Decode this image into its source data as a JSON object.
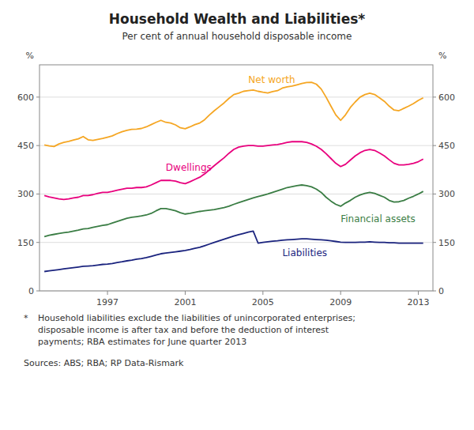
{
  "chart_data": {
    "type": "line",
    "title": "Household Wealth and Liabilities*",
    "subtitle": "Per cent of annual household disposable income",
    "y_label": "%",
    "y2_label": "%",
    "footnote_bullet": "*",
    "footnote": "Household liabilities exclude the liabilities of unincorporated enterprises;\ndisposable income is after tax and before the deduction of interest\npayments; RBA estimates for June quarter 2013",
    "sources": "Sources: ABS; RBA; RP Data-Rismark",
    "grid": true,
    "xlim": [
      1993.5,
      2013.75
    ],
    "xticks": [
      1997,
      2001,
      2005,
      2009,
      2013
    ],
    "ylim": [
      0,
      700
    ],
    "yticks": [
      0,
      150,
      300,
      450,
      600
    ],
    "y2lim": [
      0,
      700
    ],
    "y2ticks": [
      0,
      150,
      300,
      450,
      600
    ],
    "x": [
      1993.75,
      1994.0,
      1994.25,
      1994.5,
      1994.75,
      1995.0,
      1995.25,
      1995.5,
      1995.75,
      1996.0,
      1996.25,
      1996.5,
      1996.75,
      1997.0,
      1997.25,
      1997.5,
      1997.75,
      1998.0,
      1998.25,
      1998.5,
      1998.75,
      1999.0,
      1999.25,
      1999.5,
      1999.75,
      2000.0,
      2000.25,
      2000.5,
      2000.75,
      2001.0,
      2001.25,
      2001.5,
      2001.75,
      2002.0,
      2002.25,
      2002.5,
      2002.75,
      2003.0,
      2003.25,
      2003.5,
      2003.75,
      2004.0,
      2004.25,
      2004.5,
      2004.75,
      2005.0,
      2005.25,
      2005.5,
      2005.75,
      2006.0,
      2006.25,
      2006.5,
      2006.75,
      2007.0,
      2007.25,
      2007.5,
      2007.75,
      2008.0,
      2008.25,
      2008.5,
      2008.75,
      2009.0,
      2009.25,
      2009.5,
      2009.75,
      2010.0,
      2010.25,
      2010.5,
      2010.75,
      2011.0,
      2011.25,
      2011.5,
      2011.75,
      2012.0,
      2012.25,
      2012.5,
      2012.75,
      2013.0,
      2013.25
    ],
    "series": [
      {
        "name": "Net worth",
        "color": "#F5A623",
        "values": [
          452,
          449,
          447,
          455,
          460,
          463,
          467,
          471,
          478,
          468,
          466,
          469,
          472,
          476,
          480,
          487,
          493,
          497,
          500,
          501,
          503,
          508,
          515,
          522,
          528,
          522,
          520,
          514,
          505,
          502,
          508,
          515,
          520,
          530,
          545,
          558,
          570,
          582,
          596,
          608,
          612,
          618,
          620,
          622,
          618,
          615,
          613,
          617,
          620,
          628,
          632,
          634,
          638,
          642,
          645,
          646,
          640,
          625,
          600,
          572,
          545,
          528,
          545,
          568,
          585,
          600,
          608,
          612,
          608,
          598,
          587,
          572,
          560,
          558,
          565,
          572,
          580,
          590,
          598
        ]
      },
      {
        "name": "Dwellings",
        "color": "#E8007D",
        "values": [
          295,
          291,
          288,
          285,
          283,
          285,
          288,
          290,
          295,
          295,
          298,
          302,
          305,
          305,
          308,
          312,
          315,
          318,
          318,
          320,
          320,
          322,
          328,
          335,
          342,
          342,
          342,
          340,
          335,
          332,
          338,
          345,
          352,
          362,
          375,
          388,
          400,
          412,
          426,
          438,
          445,
          448,
          450,
          450,
          448,
          448,
          450,
          452,
          453,
          456,
          460,
          462,
          462,
          462,
          460,
          455,
          448,
          438,
          425,
          410,
          395,
          385,
          392,
          405,
          418,
          428,
          435,
          438,
          435,
          427,
          418,
          406,
          395,
          390,
          390,
          392,
          395,
          400,
          408
        ]
      },
      {
        "name": "Financial assets",
        "color": "#3A7D44",
        "values": [
          168,
          172,
          175,
          178,
          180,
          182,
          185,
          188,
          192,
          193,
          197,
          200,
          203,
          205,
          210,
          215,
          220,
          225,
          228,
          230,
          232,
          235,
          240,
          248,
          255,
          255,
          252,
          248,
          242,
          238,
          240,
          243,
          246,
          248,
          250,
          252,
          255,
          258,
          262,
          268,
          273,
          278,
          283,
          288,
          292,
          296,
          300,
          305,
          310,
          315,
          320,
          323,
          326,
          328,
          326,
          322,
          315,
          305,
          290,
          278,
          268,
          262,
          272,
          280,
          290,
          297,
          302,
          305,
          302,
          296,
          290,
          280,
          275,
          276,
          280,
          287,
          293,
          300,
          308
        ]
      },
      {
        "name": "Liabilities",
        "color": "#1A237E",
        "values": [
          60,
          62,
          64,
          66,
          68,
          70,
          72,
          74,
          76,
          77,
          78,
          80,
          82,
          83,
          85,
          88,
          90,
          93,
          95,
          98,
          100,
          103,
          107,
          111,
          115,
          117,
          119,
          121,
          123,
          125,
          128,
          132,
          135,
          140,
          145,
          150,
          155,
          160,
          165,
          170,
          174,
          178,
          182,
          185,
          148,
          150,
          152,
          154,
          155,
          157,
          158,
          159,
          160,
          161,
          161,
          160,
          159,
          158,
          157,
          155,
          153,
          151,
          150,
          150,
          150,
          151,
          151,
          152,
          151,
          150,
          150,
          149,
          149,
          148,
          148,
          148,
          148,
          148,
          148
        ]
      }
    ]
  }
}
